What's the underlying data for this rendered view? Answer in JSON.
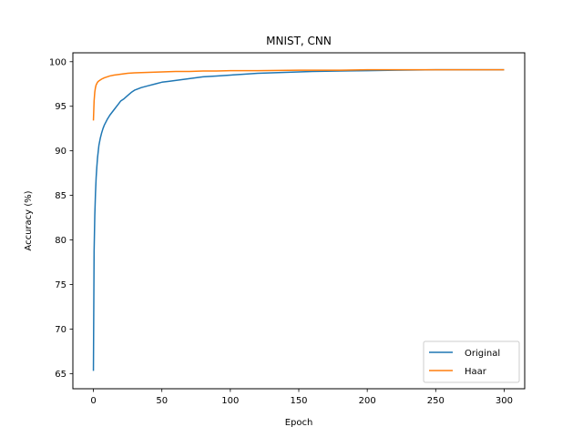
{
  "chart_data": {
    "type": "line",
    "title": "MNIST, CNN",
    "xlabel": "Epoch",
    "ylabel": "Accuracy (%)",
    "xlim": [
      -15,
      315
    ],
    "ylim": [
      63.3,
      101.0
    ],
    "xticks": [
      0,
      50,
      100,
      150,
      200,
      250,
      300
    ],
    "yticks": [
      65,
      70,
      75,
      80,
      85,
      90,
      95,
      100
    ],
    "grid": false,
    "legend_position": "lower-right",
    "series": [
      {
        "name": "Original",
        "color": "#1f77b4",
        "x": [
          0,
          0.5,
          1,
          1.5,
          2,
          2.5,
          3,
          4,
          5,
          6,
          7,
          8,
          10,
          12,
          15,
          18,
          20,
          22,
          25,
          28,
          30,
          35,
          40,
          45,
          50,
          55,
          60,
          70,
          80,
          90,
          100,
          110,
          120,
          130,
          140,
          150,
          160,
          180,
          200,
          220,
          250,
          280,
          300
        ],
        "y": [
          65.3,
          78.7,
          82.7,
          85.2,
          87.0,
          88.2,
          89.2,
          90.6,
          91.4,
          92.0,
          92.5,
          92.9,
          93.5,
          94.0,
          94.6,
          95.2,
          95.6,
          95.8,
          96.2,
          96.6,
          96.8,
          97.1,
          97.3,
          97.5,
          97.7,
          97.8,
          97.9,
          98.1,
          98.3,
          98.4,
          98.5,
          98.6,
          98.7,
          98.75,
          98.8,
          98.85,
          98.9,
          98.95,
          99.0,
          99.05,
          99.1,
          99.1,
          99.1
        ]
      },
      {
        "name": "Haar",
        "color": "#ff7f0e",
        "x": [
          0,
          0.5,
          1,
          1.5,
          2,
          3,
          4,
          5,
          6,
          8,
          10,
          12,
          15,
          20,
          25,
          30,
          40,
          50,
          60,
          70,
          80,
          90,
          100,
          120,
          150,
          180,
          200,
          220,
          250,
          280,
          300
        ],
        "y": [
          93.4,
          95.6,
          96.6,
          97.1,
          97.4,
          97.7,
          97.85,
          97.95,
          98.05,
          98.2,
          98.3,
          98.4,
          98.5,
          98.6,
          98.7,
          98.75,
          98.8,
          98.85,
          98.9,
          98.9,
          98.95,
          98.95,
          99.0,
          99.0,
          99.05,
          99.05,
          99.1,
          99.1,
          99.1,
          99.1,
          99.1
        ]
      }
    ]
  }
}
